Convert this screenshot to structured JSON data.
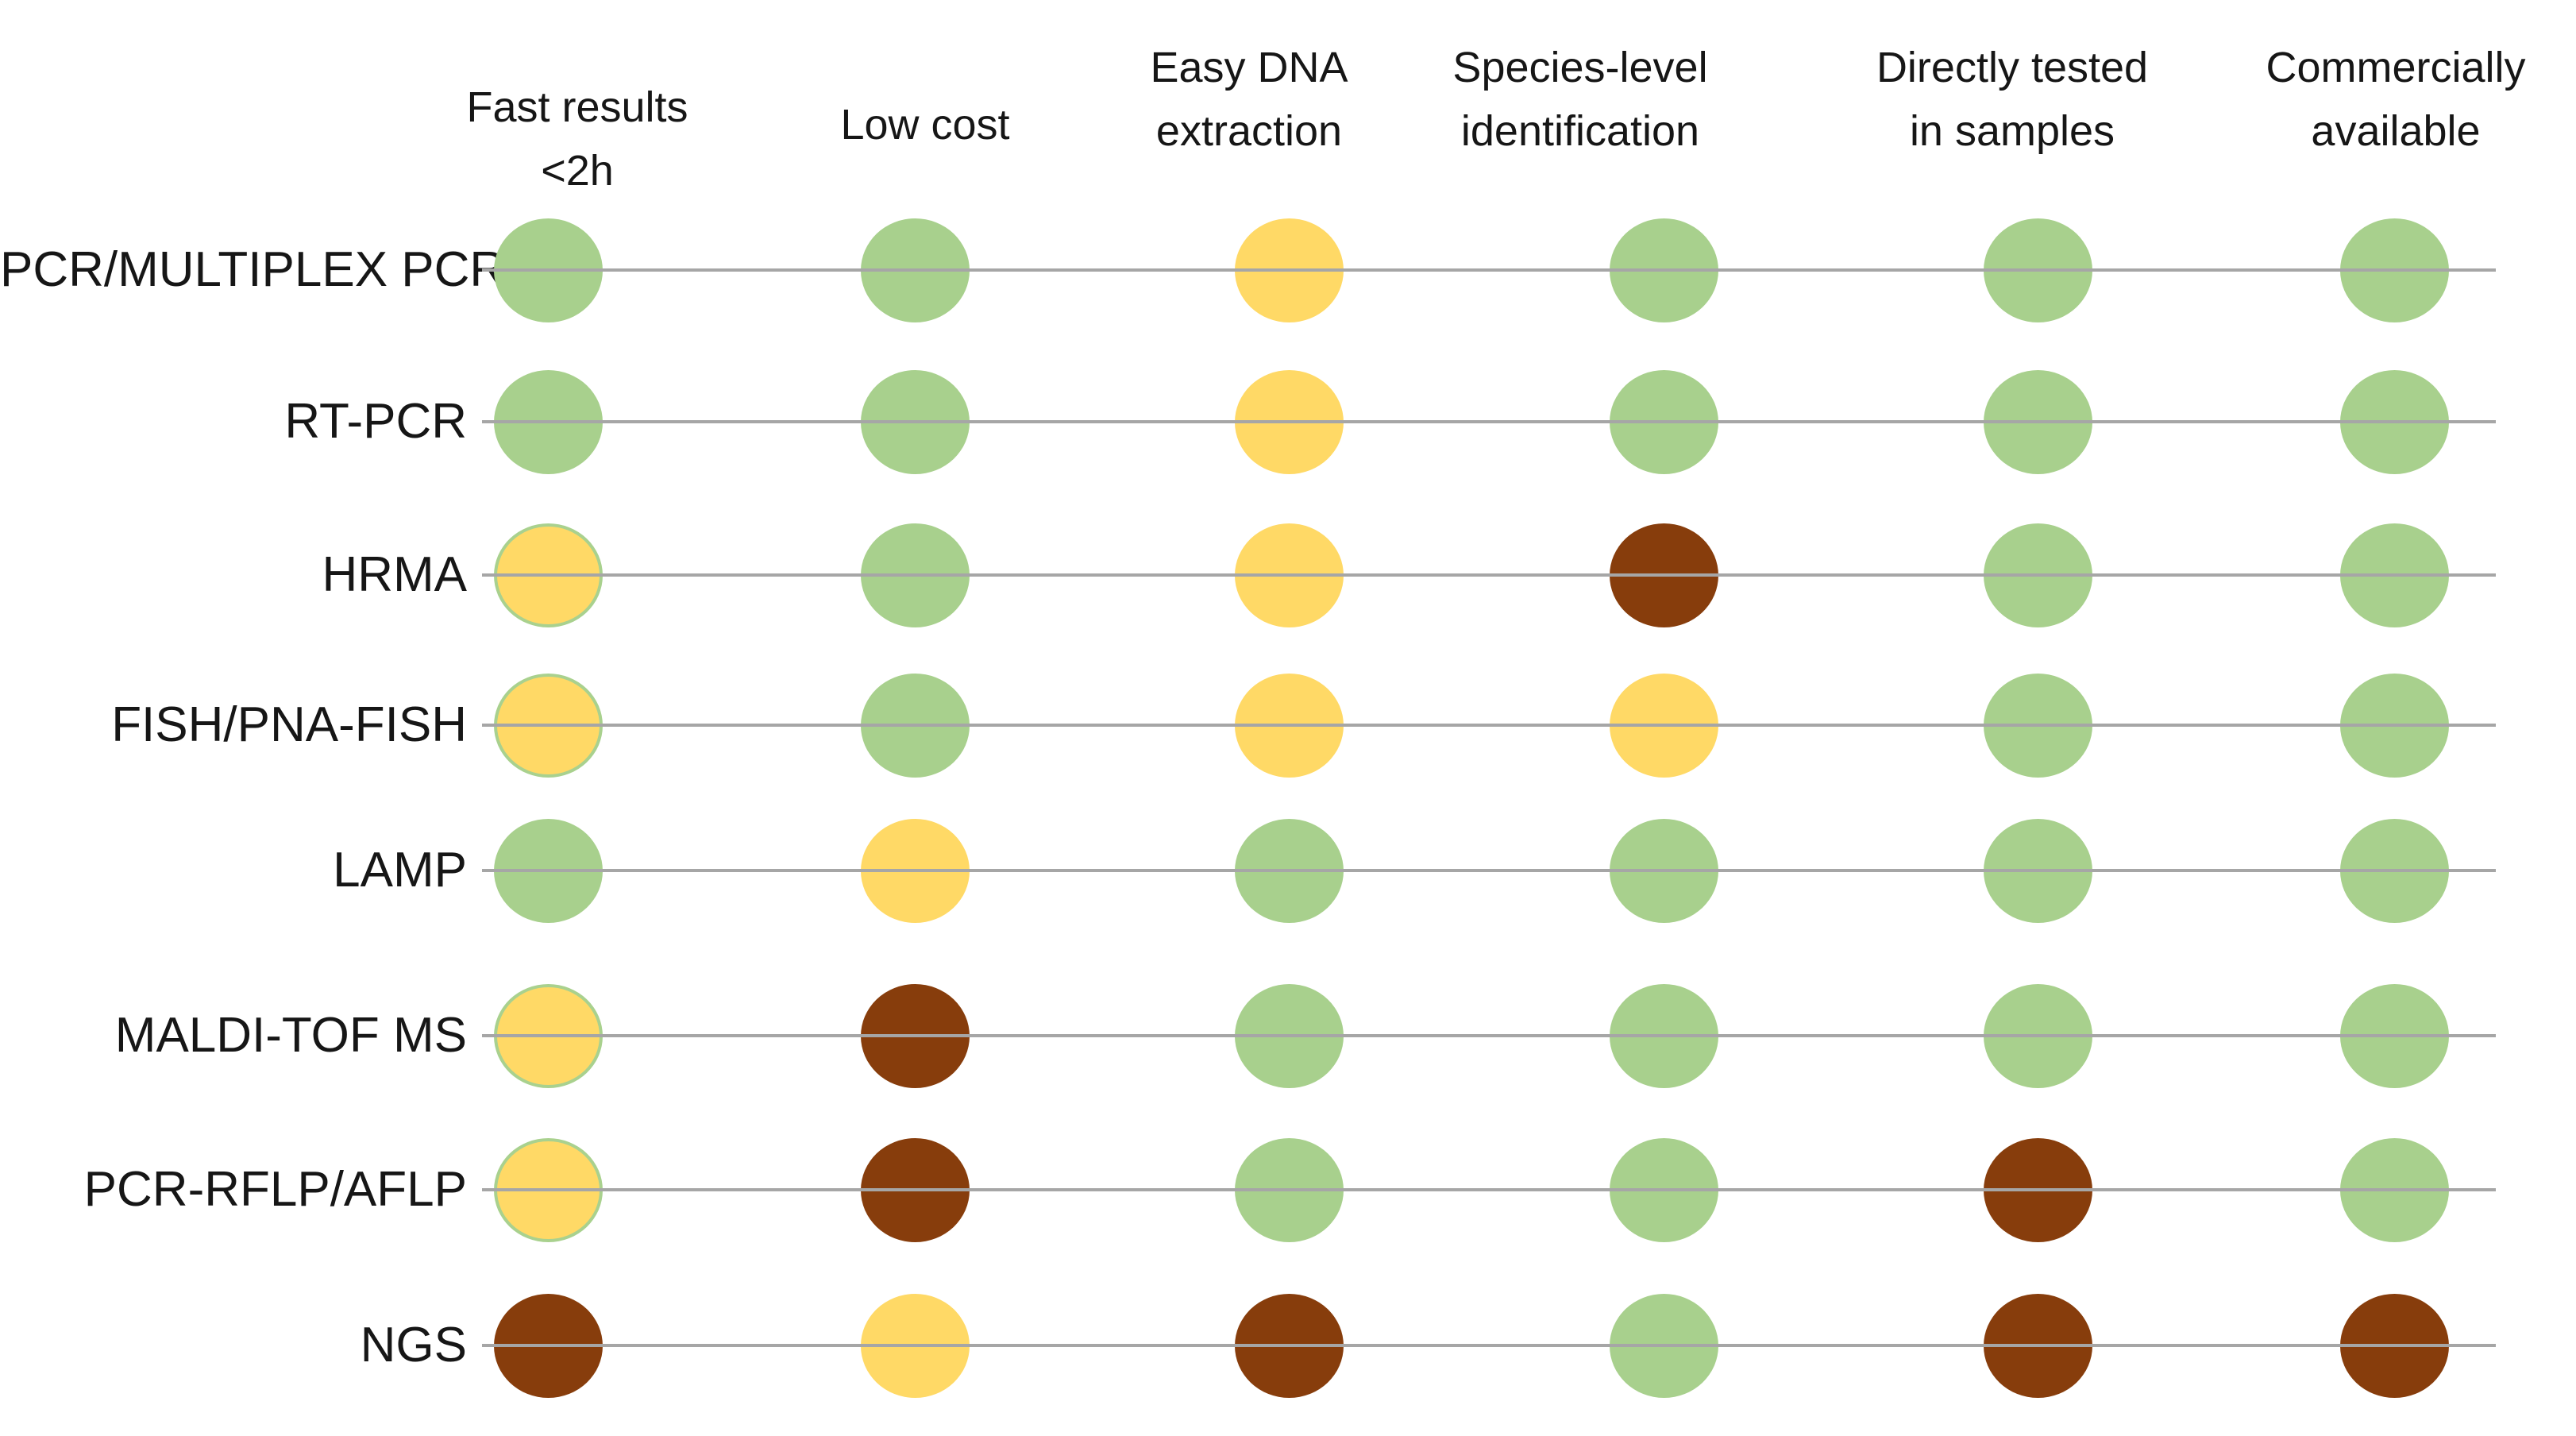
{
  "chart_data": {
    "type": "heatmap",
    "title": "",
    "columns": [
      "Fast results <2h",
      "Low cost",
      "Easy DNA extraction",
      "Species-level identification",
      "Directly tested in samples",
      "Commercially available"
    ],
    "column_header_lines": [
      [
        "Fast results",
        "<2h"
      ],
      [
        "Low cost"
      ],
      [
        "Easy DNA",
        "extraction"
      ],
      [
        "Species-level",
        "identification"
      ],
      [
        "Directly tested",
        "in samples"
      ],
      [
        "Commercially",
        "available"
      ]
    ],
    "rows": [
      "PCR/MULTIPLEX PCR",
      "RT-PCR",
      "HRMA",
      "FISH/PNA-FISH",
      "LAMP",
      "MALDI-TOF MS",
      "PCR-RFLP/AFLP",
      "NGS"
    ],
    "cells": [
      [
        "green",
        "green",
        "yellow",
        "green",
        "green",
        "green"
      ],
      [
        "green",
        "green",
        "yellow",
        "green",
        "green",
        "green"
      ],
      [
        "yellow",
        "green",
        "yellow",
        "brown",
        "green",
        "green"
      ],
      [
        "yellow",
        "green",
        "yellow",
        "yellow",
        "green",
        "green"
      ],
      [
        "green",
        "yellow",
        "green",
        "green",
        "green",
        "green"
      ],
      [
        "yellow",
        "brown",
        "green",
        "green",
        "green",
        "green"
      ],
      [
        "yellow",
        "brown",
        "green",
        "green",
        "brown",
        "green"
      ],
      [
        "brown",
        "yellow",
        "brown",
        "green",
        "brown",
        "brown"
      ]
    ],
    "outlined_yellow_cells": [
      [
        2,
        0
      ],
      [
        3,
        0
      ],
      [
        5,
        0
      ],
      [
        6,
        0
      ]
    ],
    "colors": {
      "green": "#A8D08D",
      "yellow": "#FFD966",
      "brown": "#873D0C",
      "outline": "#A9D18E",
      "row_line": "#A6A6A6",
      "text": "#161616"
    },
    "legend_position": "none",
    "grid": "row-lines"
  }
}
